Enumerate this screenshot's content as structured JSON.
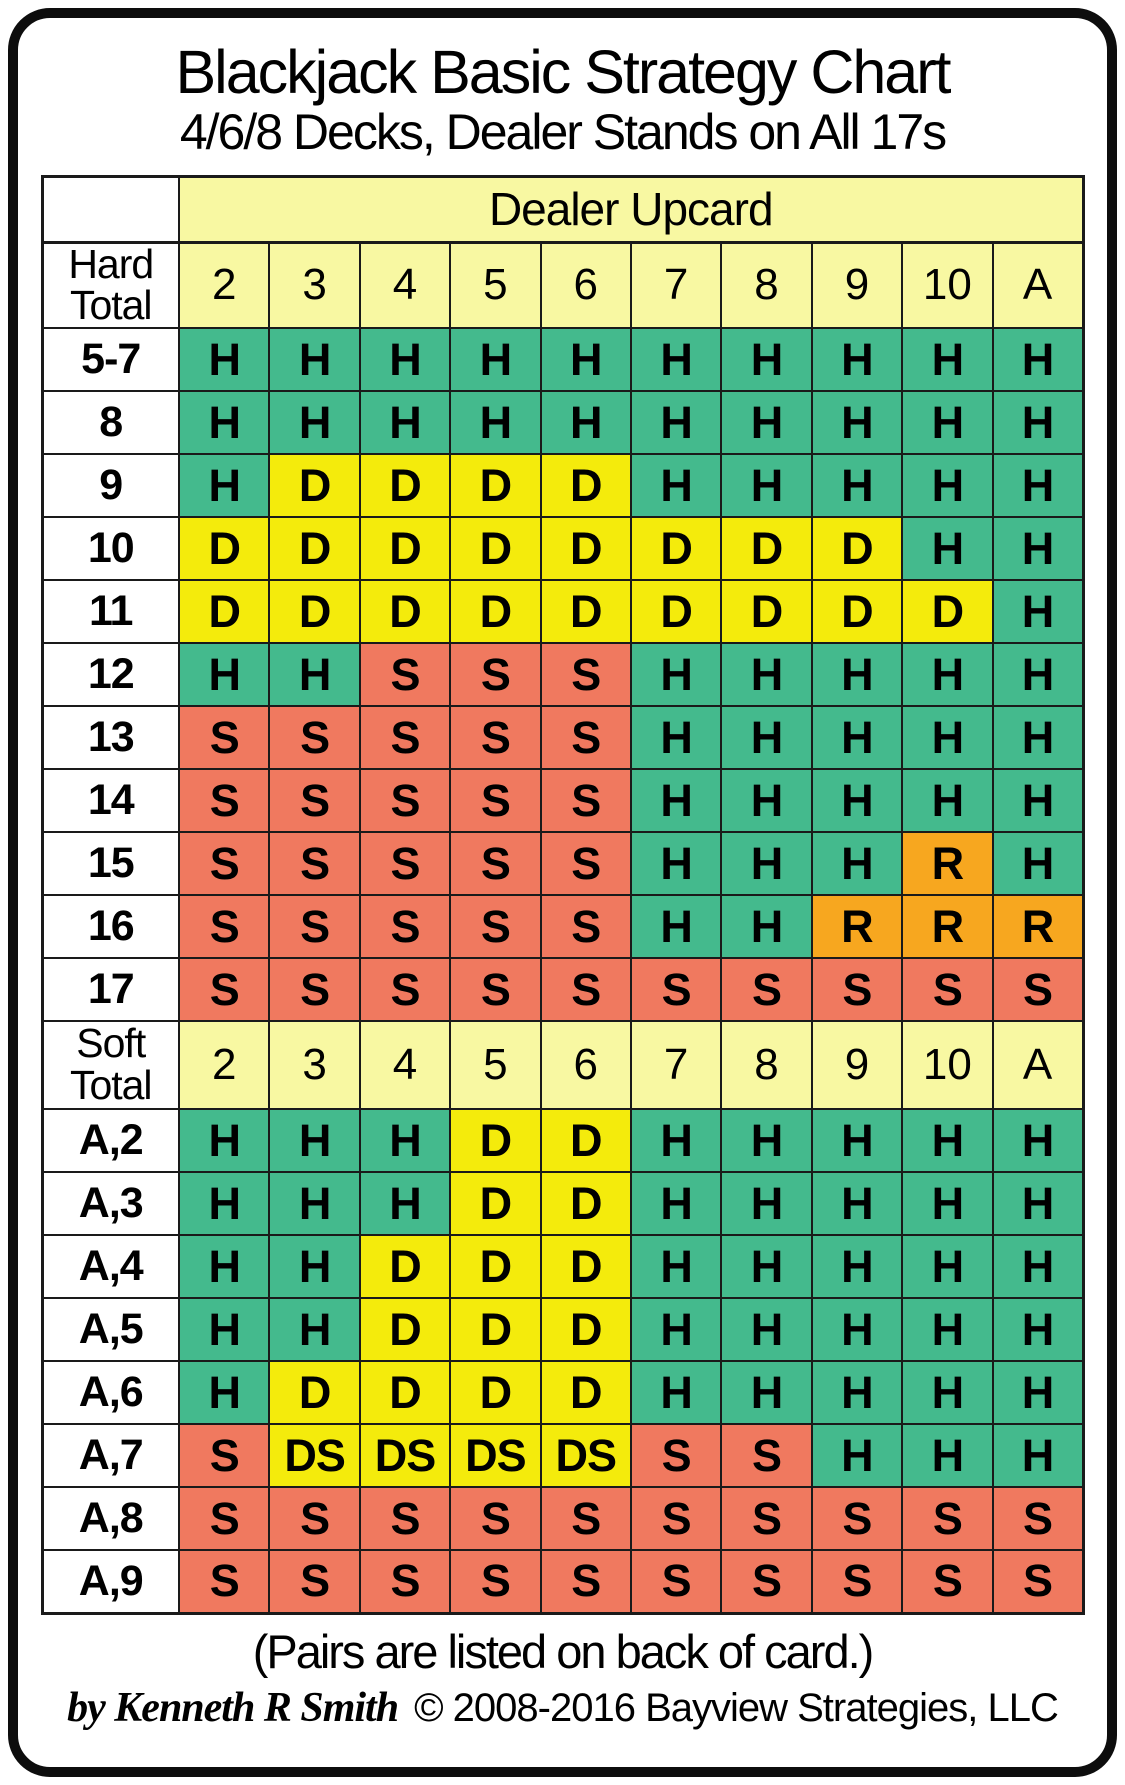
{
  "title": "Blackjack Basic Strategy Chart",
  "subtitle": "4/6/8 Decks, Dealer Stands on All 17s",
  "footer": {
    "pairs_note": "(Pairs are listed on back of card.)",
    "author": "by Kenneth R Smith",
    "copyright": "© 2008-2016 Bayview Strategies, LLC"
  },
  "colors": {
    "header_pale_yellow": "#F8F8A2",
    "hit_green": "#44BA8D",
    "double_yellow": "#F4EB0C",
    "stand_salmon": "#F0795F",
    "surrender_orange": "#F7A71F",
    "grid_black": "#1A1A1A"
  },
  "chart_data": {
    "type": "table",
    "title": "Blackjack Basic Strategy Chart",
    "subtitle": "4/6/8 Decks, Dealer Stands on All 17s",
    "columns_header": "Dealer Upcard",
    "columns": [
      "2",
      "3",
      "4",
      "5",
      "6",
      "7",
      "8",
      "9",
      "10",
      "A"
    ],
    "action_colors": {
      "H": "#44BA8D",
      "D": "#F4EB0C",
      "S": "#F0795F",
      "R": "#F7A71F",
      "DS": "#F4EB0C"
    },
    "sections": [
      {
        "label": "Hard Total",
        "rows": [
          {
            "label": "5-7",
            "actions": [
              "H",
              "H",
              "H",
              "H",
              "H",
              "H",
              "H",
              "H",
              "H",
              "H"
            ]
          },
          {
            "label": "8",
            "actions": [
              "H",
              "H",
              "H",
              "H",
              "H",
              "H",
              "H",
              "H",
              "H",
              "H"
            ]
          },
          {
            "label": "9",
            "actions": [
              "H",
              "D",
              "D",
              "D",
              "D",
              "H",
              "H",
              "H",
              "H",
              "H"
            ]
          },
          {
            "label": "10",
            "actions": [
              "D",
              "D",
              "D",
              "D",
              "D",
              "D",
              "D",
              "D",
              "H",
              "H"
            ]
          },
          {
            "label": "11",
            "actions": [
              "D",
              "D",
              "D",
              "D",
              "D",
              "D",
              "D",
              "D",
              "D",
              "H"
            ]
          },
          {
            "label": "12",
            "actions": [
              "H",
              "H",
              "S",
              "S",
              "S",
              "H",
              "H",
              "H",
              "H",
              "H"
            ]
          },
          {
            "label": "13",
            "actions": [
              "S",
              "S",
              "S",
              "S",
              "S",
              "H",
              "H",
              "H",
              "H",
              "H"
            ]
          },
          {
            "label": "14",
            "actions": [
              "S",
              "S",
              "S",
              "S",
              "S",
              "H",
              "H",
              "H",
              "H",
              "H"
            ]
          },
          {
            "label": "15",
            "actions": [
              "S",
              "S",
              "S",
              "S",
              "S",
              "H",
              "H",
              "H",
              "R",
              "H"
            ]
          },
          {
            "label": "16",
            "actions": [
              "S",
              "S",
              "S",
              "S",
              "S",
              "H",
              "H",
              "R",
              "R",
              "R"
            ]
          },
          {
            "label": "17",
            "actions": [
              "S",
              "S",
              "S",
              "S",
              "S",
              "S",
              "S",
              "S",
              "S",
              "S"
            ]
          }
        ]
      },
      {
        "label": "Soft Total",
        "rows": [
          {
            "label": "A,2",
            "actions": [
              "H",
              "H",
              "H",
              "D",
              "D",
              "H",
              "H",
              "H",
              "H",
              "H"
            ]
          },
          {
            "label": "A,3",
            "actions": [
              "H",
              "H",
              "H",
              "D",
              "D",
              "H",
              "H",
              "H",
              "H",
              "H"
            ]
          },
          {
            "label": "A,4",
            "actions": [
              "H",
              "H",
              "D",
              "D",
              "D",
              "H",
              "H",
              "H",
              "H",
              "H"
            ]
          },
          {
            "label": "A,5",
            "actions": [
              "H",
              "H",
              "D",
              "D",
              "D",
              "H",
              "H",
              "H",
              "H",
              "H"
            ]
          },
          {
            "label": "A,6",
            "actions": [
              "H",
              "D",
              "D",
              "D",
              "D",
              "H",
              "H",
              "H",
              "H",
              "H"
            ]
          },
          {
            "label": "A,7",
            "actions": [
              "S",
              "DS",
              "DS",
              "DS",
              "DS",
              "S",
              "S",
              "H",
              "H",
              "H"
            ]
          },
          {
            "label": "A,8",
            "actions": [
              "S",
              "S",
              "S",
              "S",
              "S",
              "S",
              "S",
              "S",
              "S",
              "S"
            ]
          },
          {
            "label": "A,9",
            "actions": [
              "S",
              "S",
              "S",
              "S",
              "S",
              "S",
              "S",
              "S",
              "S",
              "S"
            ]
          }
        ]
      }
    ]
  }
}
